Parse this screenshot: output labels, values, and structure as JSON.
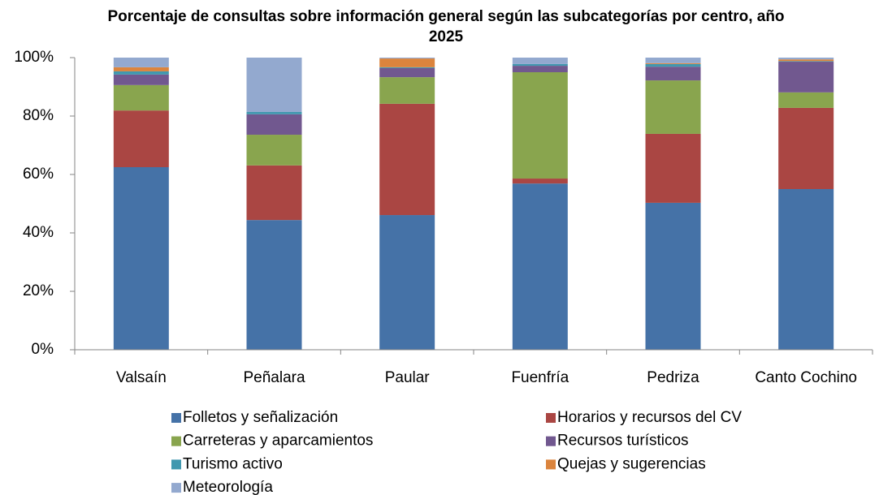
{
  "chart_data": {
    "type": "stacked_bar",
    "title": "Porcentaje de consultas sobre información general según las subcategorías por centro, año 2025",
    "categories": [
      "Valsaín",
      "Peñalara",
      "Paular",
      "Fuenfría",
      "Pedriza",
      "Canto Cochino"
    ],
    "series": [
      {
        "name": "Folletos y señalización",
        "color": "#4572a7",
        "values": [
          62.5,
          44.4,
          46.1,
          56.9,
          50.3,
          55.0
        ]
      },
      {
        "name": "Horarios y recursos del CV",
        "color": "#aa4643",
        "values": [
          19.4,
          18.7,
          38.1,
          1.7,
          23.6,
          27.8
        ]
      },
      {
        "name": "Carreteras y aparcamientos",
        "color": "#89a54e",
        "values": [
          8.7,
          10.5,
          9.1,
          36.4,
          18.3,
          5.3
        ]
      },
      {
        "name": "Recursos turísticos",
        "color": "#71588f",
        "values": [
          3.6,
          7.0,
          3.1,
          2.2,
          4.7,
          10.5
        ]
      },
      {
        "name": "Turismo activo",
        "color": "#4198af",
        "values": [
          1.1,
          0.8,
          0.3,
          0.6,
          0.9,
          0.2
        ]
      },
      {
        "name": "Quejas y sugerencias",
        "color": "#db843d",
        "values": [
          1.4,
          0.0,
          3.0,
          0.0,
          0.3,
          0.6
        ]
      },
      {
        "name": "Meteorología",
        "color": "#93a9cf",
        "values": [
          3.3,
          18.6,
          0.3,
          2.2,
          1.9,
          0.6
        ]
      }
    ],
    "ylim": [
      0,
      100
    ],
    "yticks": [
      {
        "value": 0,
        "label": "0%"
      },
      {
        "value": 20,
        "label": "20%"
      },
      {
        "value": 40,
        "label": "40%"
      },
      {
        "value": 60,
        "label": "60%"
      },
      {
        "value": 80,
        "label": "80%"
      },
      {
        "value": 100,
        "label": "100%"
      }
    ],
    "grid": false,
    "legend": "bottom"
  }
}
